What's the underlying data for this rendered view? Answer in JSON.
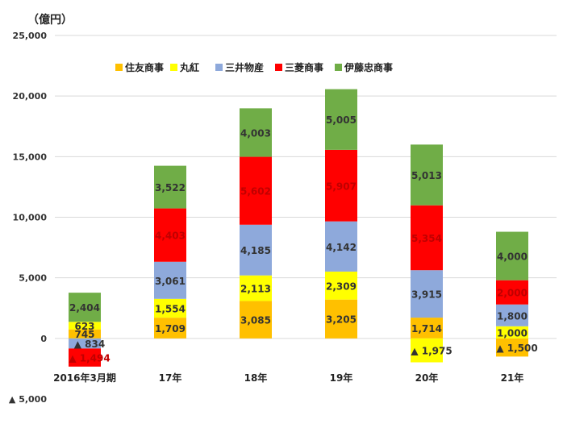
{
  "chart_data": {
    "type": "bar",
    "stacked": true,
    "unit_label": "（億円）",
    "categories": [
      "2016年3月期",
      "17年",
      "18年",
      "19年",
      "20年",
      "21年"
    ],
    "series": [
      {
        "name": "住友商事",
        "color": "#FFC000",
        "values": [
          745,
          1709,
          3085,
          3205,
          1714,
          -1500
        ],
        "labels": [
          "745",
          "1,709",
          "3,085",
          "3,205",
          "1,714",
          "▲ 1,500"
        ]
      },
      {
        "name": "丸紅",
        "color": "#FFFF00",
        "values": [
          623,
          1554,
          2113,
          2309,
          -1975,
          1000
        ],
        "labels": [
          "623",
          "1,554",
          "2,113",
          "2,309",
          "▲ 1,975",
          "1,000"
        ]
      },
      {
        "name": "三井物産",
        "color": "#8EA9DB",
        "values": [
          -834,
          3061,
          4185,
          4142,
          3915,
          1800
        ],
        "labels": [
          "▲ 834",
          "3,061",
          "4,185",
          "4,142",
          "3,915",
          "1,800"
        ]
      },
      {
        "name": "三菱商事",
        "color": "#FF0000",
        "values": [
          -1494,
          4403,
          5602,
          5907,
          5354,
          2000
        ],
        "labels": [
          "▲ 1,494",
          "4,403",
          "5,602",
          "5,907",
          "5,354",
          "2,000"
        ]
      },
      {
        "name": "伊藤忠商事",
        "color": "#70AD47",
        "values": [
          2404,
          3522,
          4003,
          5005,
          5013,
          4000
        ],
        "labels": [
          "2,404",
          "3,522",
          "4,003",
          "5,005",
          "5,013",
          "4,000"
        ]
      }
    ],
    "y_ticks": [
      {
        "value": 25000,
        "label": "25,000"
      },
      {
        "value": 20000,
        "label": "20,000"
      },
      {
        "value": 15000,
        "label": "15,000"
      },
      {
        "value": 10000,
        "label": "10,000"
      },
      {
        "value": 5000,
        "label": "5,000"
      },
      {
        "value": 0,
        "label": "0"
      },
      {
        "value": -5000,
        "label": "▲ 5,000"
      }
    ],
    "ylim": [
      -5000,
      25000
    ],
    "grid": true,
    "legend_position": "top"
  }
}
